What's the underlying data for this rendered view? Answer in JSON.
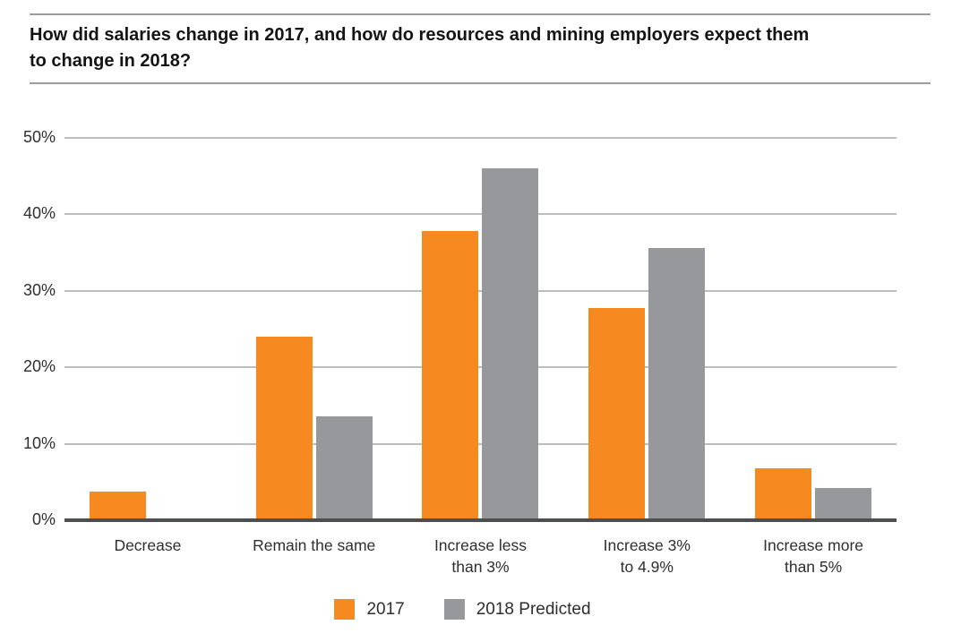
{
  "header": {
    "title": "How did salaries change in 2017, and how do resources and mining employers expect them\nto change in 2018?"
  },
  "chart_data": {
    "type": "bar",
    "title": "How did salaries change in 2017, and how do resources and mining employers expect them to change in 2018?",
    "categories": [
      "Decrease",
      "Remain the same",
      "Increase less than 3%",
      "Increase 3% to 4.9%",
      "Increase more than 5%"
    ],
    "category_label_lines": [
      [
        "Decrease"
      ],
      [
        "Remain the same"
      ],
      [
        "Increase less",
        "than 3%"
      ],
      [
        "Increase 3%",
        "to 4.9%"
      ],
      [
        "Increase more",
        "than 5%"
      ]
    ],
    "series": [
      {
        "name": "2017",
        "color": "#F6891F",
        "values": [
          3.8,
          24,
          37.8,
          27.7,
          6.8
        ]
      },
      {
        "name": "2018 Predicted",
        "color": "#97989B",
        "values": [
          0,
          13.6,
          46,
          35.6,
          4.2
        ]
      }
    ],
    "xlabel": "",
    "ylabel": "",
    "ylim": [
      0,
      50
    ],
    "y_ticks": [
      {
        "value": 0,
        "label": "0%"
      },
      {
        "value": 10,
        "label": "10%"
      },
      {
        "value": 20,
        "label": "20%"
      },
      {
        "value": 30,
        "label": "30%"
      },
      {
        "value": 40,
        "label": "40%"
      },
      {
        "value": 50,
        "label": "50%"
      }
    ],
    "grid": true,
    "legend_position": "bottom"
  },
  "colors": {
    "accent_orange": "#F6891F",
    "series_gray": "#97989B",
    "gridline": "#BDBDBD",
    "axis": "#4D4E50",
    "rule": "#9C9C9C",
    "title_text": "#141414",
    "label_text": "#2E2E30"
  }
}
